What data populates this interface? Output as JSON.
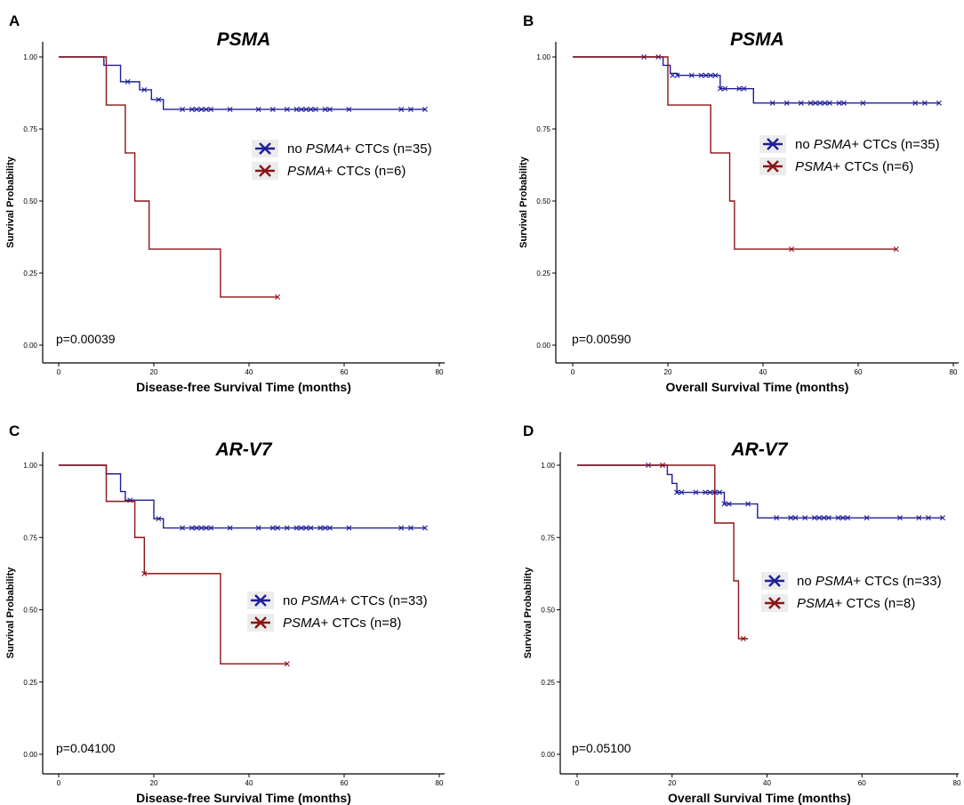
{
  "chart_data": [
    {
      "panel": "A",
      "type": "line",
      "title": "PSMA",
      "xlabel": "Disease-free Survival Time (months)",
      "ylabel": "Survival Probability",
      "xlim": [
        0,
        80
      ],
      "ylim": [
        0,
        1
      ],
      "xticks": [
        "0",
        "20",
        "40",
        "60",
        "80"
      ],
      "yticks": [
        "0.00",
        "0.25",
        "0.50",
        "0.75",
        "1.00"
      ],
      "pvalue": "p=0.00039",
      "legend_position": "right-middle",
      "series": [
        {
          "legend_prefix": "no ",
          "legend_italic": "PSMA",
          "legend_suffix": "+ CTCs (n=35)",
          "color": "#1f1f99",
          "steps": [
            [
              0,
              1.0
            ],
            [
              9.5,
              0.971
            ],
            [
              13,
              0.914
            ],
            [
              17,
              0.886
            ],
            [
              19.5,
              0.852
            ],
            [
              22,
              0.818
            ],
            [
              77,
              0.818
            ]
          ],
          "censors": [
            [
              14.5,
              0.914
            ],
            [
              18,
              0.886
            ],
            [
              21,
              0.852
            ],
            [
              26,
              0.818
            ],
            [
              28,
              0.818
            ],
            [
              29,
              0.818
            ],
            [
              30,
              0.818
            ],
            [
              31,
              0.818
            ],
            [
              32,
              0.818
            ],
            [
              36,
              0.818
            ],
            [
              42,
              0.818
            ],
            [
              45,
              0.818
            ],
            [
              48,
              0.818
            ],
            [
              50,
              0.818
            ],
            [
              51,
              0.818
            ],
            [
              52,
              0.818
            ],
            [
              53,
              0.818
            ],
            [
              54,
              0.818
            ],
            [
              56,
              0.818
            ],
            [
              57,
              0.818
            ],
            [
              61,
              0.818
            ],
            [
              72,
              0.818
            ],
            [
              74,
              0.818
            ],
            [
              77,
              0.818
            ]
          ]
        },
        {
          "legend_prefix": "",
          "legend_italic": "PSMA",
          "legend_suffix": "+ CTCs (n=6)",
          "color": "#8b1414",
          "steps": [
            [
              0,
              1.0
            ],
            [
              10,
              0.833
            ],
            [
              14,
              0.667
            ],
            [
              16,
              0.5
            ],
            [
              19,
              0.333
            ],
            [
              34,
              0.167
            ],
            [
              46,
              0.167
            ]
          ],
          "censors": [
            [
              46,
              0.167
            ]
          ]
        }
      ]
    },
    {
      "panel": "B",
      "type": "line",
      "title": "PSMA",
      "xlabel": "Overall Survival Time (months)",
      "ylabel": "Survival Probability",
      "xlim": [
        0,
        80
      ],
      "ylim": [
        0,
        1
      ],
      "xticks": [
        "0",
        "20",
        "40",
        "60",
        "80"
      ],
      "yticks": [
        "0.00",
        "0.25",
        "0.50",
        "0.75",
        "1.00"
      ],
      "pvalue": "p=0.00590",
      "legend_position": "right-middle",
      "series": [
        {
          "legend_prefix": "no ",
          "legend_italic": "PSMA",
          "legend_suffix": "+ CTCs (n=35)",
          "color": "#1f1f99",
          "steps": [
            [
              0,
              1.0
            ],
            [
              19,
              0.971
            ],
            [
              20.5,
              0.943
            ],
            [
              22,
              0.936
            ],
            [
              31,
              0.89
            ],
            [
              38,
              0.84
            ],
            [
              77,
              0.84
            ]
          ],
          "censors": [
            [
              15,
              1.0
            ],
            [
              18,
              1.0
            ],
            [
              21,
              0.936
            ],
            [
              22,
              0.936
            ],
            [
              25,
              0.936
            ],
            [
              27,
              0.936
            ],
            [
              28,
              0.936
            ],
            [
              29,
              0.936
            ],
            [
              30,
              0.936
            ],
            [
              31,
              0.89
            ],
            [
              32,
              0.89
            ],
            [
              35,
              0.89
            ],
            [
              36,
              0.89
            ],
            [
              42,
              0.84
            ],
            [
              45,
              0.84
            ],
            [
              48,
              0.84
            ],
            [
              50,
              0.84
            ],
            [
              51,
              0.84
            ],
            [
              52,
              0.84
            ],
            [
              53,
              0.84
            ],
            [
              54,
              0.84
            ],
            [
              56,
              0.84
            ],
            [
              57,
              0.84
            ],
            [
              61,
              0.84
            ],
            [
              72,
              0.84
            ],
            [
              74,
              0.84
            ],
            [
              77,
              0.84
            ]
          ]
        },
        {
          "legend_prefix": "",
          "legend_italic": "PSMA",
          "legend_suffix": "+ CTCs (n=6)",
          "color": "#8b1414",
          "steps": [
            [
              0,
              1.0
            ],
            [
              20,
              0.833
            ],
            [
              29,
              0.667
            ],
            [
              33,
              0.5
            ],
            [
              34,
              0.333
            ],
            [
              68,
              0.333
            ]
          ],
          "censors": [
            [
              46,
              0.333
            ],
            [
              68,
              0.333
            ]
          ]
        }
      ]
    },
    {
      "panel": "C",
      "type": "line",
      "title": "AR-V7",
      "xlabel": "Disease-free Survival Time (months)",
      "ylabel": "Survival Probability",
      "xlim": [
        0,
        80
      ],
      "ylim": [
        0,
        1
      ],
      "xticks": [
        "0",
        "20",
        "40",
        "60",
        "80"
      ],
      "yticks": [
        "0.00",
        "0.25",
        "0.50",
        "0.75",
        "1.00"
      ],
      "pvalue": "p=0.04100",
      "legend_position": "right-middle",
      "series": [
        {
          "legend_prefix": "no ",
          "legend_italic": "PSMA",
          "legend_suffix": "+ CTCs (n=33)",
          "color": "#1f1f99",
          "steps": [
            [
              0,
              1.0
            ],
            [
              10,
              0.97
            ],
            [
              13,
              0.909
            ],
            [
              14,
              0.879
            ],
            [
              20,
              0.815
            ],
            [
              22,
              0.783
            ],
            [
              77,
              0.783
            ]
          ],
          "censors": [
            [
              15,
              0.879
            ],
            [
              21,
              0.815
            ],
            [
              26,
              0.783
            ],
            [
              28,
              0.783
            ],
            [
              29,
              0.783
            ],
            [
              30,
              0.783
            ],
            [
              31,
              0.783
            ],
            [
              32,
              0.783
            ],
            [
              36,
              0.783
            ],
            [
              42,
              0.783
            ],
            [
              45,
              0.783
            ],
            [
              46,
              0.783
            ],
            [
              48,
              0.783
            ],
            [
              50,
              0.783
            ],
            [
              51,
              0.783
            ],
            [
              52,
              0.783
            ],
            [
              53,
              0.783
            ],
            [
              55,
              0.783
            ],
            [
              56,
              0.783
            ],
            [
              57,
              0.783
            ],
            [
              61,
              0.783
            ],
            [
              72,
              0.783
            ],
            [
              74,
              0.783
            ],
            [
              77,
              0.783
            ]
          ]
        },
        {
          "legend_prefix": "",
          "legend_italic": "PSMA",
          "legend_suffix": "+ CTCs (n=8)",
          "color": "#8b1414",
          "steps": [
            [
              0,
              1.0
            ],
            [
              10,
              0.875
            ],
            [
              16,
              0.75
            ],
            [
              18,
              0.625
            ],
            [
              34,
              0.313
            ],
            [
              48,
              0.313
            ]
          ],
          "censors": [
            [
              18,
              0.625
            ],
            [
              48,
              0.313
            ]
          ]
        }
      ]
    },
    {
      "panel": "D",
      "type": "line",
      "title": "AR-V7",
      "xlabel": "Overall Survival Time (months)",
      "ylabel": "Survival Probability",
      "xlim": [
        0,
        80
      ],
      "ylim": [
        0,
        1
      ],
      "xticks": [
        "0",
        "20",
        "40",
        "60",
        "80"
      ],
      "yticks": [
        "0.00",
        "0.25",
        "0.50",
        "0.75",
        "1.00"
      ],
      "pvalue": "p=0.05100",
      "legend_position": "right-middle",
      "series": [
        {
          "legend_prefix": "no ",
          "legend_italic": "PSMA",
          "legend_suffix": "+ CTCs (n=33)",
          "color": "#1f1f99",
          "steps": [
            [
              0,
              1.0
            ],
            [
              19,
              0.968
            ],
            [
              20,
              0.937
            ],
            [
              21,
              0.906
            ],
            [
              31,
              0.866
            ],
            [
              38,
              0.818
            ],
            [
              77,
              0.818
            ]
          ],
          "censors": [
            [
              15,
              1.0
            ],
            [
              18,
              1.0
            ],
            [
              21,
              0.906
            ],
            [
              22,
              0.906
            ],
            [
              25,
              0.906
            ],
            [
              27,
              0.906
            ],
            [
              28,
              0.906
            ],
            [
              29,
              0.906
            ],
            [
              30,
              0.906
            ],
            [
              31,
              0.866
            ],
            [
              32,
              0.866
            ],
            [
              36,
              0.866
            ],
            [
              42,
              0.818
            ],
            [
              45,
              0.818
            ],
            [
              46,
              0.818
            ],
            [
              48,
              0.818
            ],
            [
              50,
              0.818
            ],
            [
              51,
              0.818
            ],
            [
              52,
              0.818
            ],
            [
              53,
              0.818
            ],
            [
              55,
              0.818
            ],
            [
              56,
              0.818
            ],
            [
              57,
              0.818
            ],
            [
              61,
              0.818
            ],
            [
              68,
              0.818
            ],
            [
              72,
              0.818
            ],
            [
              74,
              0.818
            ],
            [
              77,
              0.818
            ]
          ]
        },
        {
          "legend_prefix": "",
          "legend_italic": "PSMA",
          "legend_suffix": "+ CTCs (n=8)",
          "color": "#8b1414",
          "steps": [
            [
              0,
              1.0
            ],
            [
              29,
              0.8
            ],
            [
              33,
              0.6
            ],
            [
              34,
              0.4
            ],
            [
              36,
              0.4
            ]
          ],
          "censors": [
            [
              18,
              1.0
            ],
            [
              35,
              0.4
            ]
          ]
        }
      ]
    }
  ]
}
